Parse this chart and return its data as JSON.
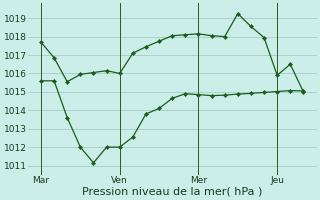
{
  "background_color": "#cceee8",
  "grid_color": "#aaccc8",
  "line_color": "#1a5c1a",
  "xlabel": "Pression niveau de la mer( hPa )",
  "ylim": [
    1010.5,
    1019.8
  ],
  "yticks": [
    1011,
    1012,
    1013,
    1014,
    1015,
    1016,
    1017,
    1018,
    1019
  ],
  "xtick_labels": [
    "Mar",
    "Ven",
    "Mer",
    "Jeu"
  ],
  "xtick_positions": [
    0,
    3,
    6,
    9
  ],
  "vlines": [
    0,
    3,
    6,
    9
  ],
  "line1_x": [
    0,
    0.5,
    1.0,
    1.5,
    2.0,
    2.5,
    3.0,
    3.5,
    4.0,
    4.5,
    5.0,
    5.5,
    6.0,
    6.5,
    7.0,
    7.5,
    8.0,
    8.5,
    9.0,
    9.5,
    10.0
  ],
  "line1_y": [
    1017.7,
    1016.85,
    1015.55,
    1015.95,
    1016.05,
    1016.15,
    1016.0,
    1017.1,
    1017.45,
    1017.75,
    1018.05,
    1018.1,
    1018.15,
    1018.05,
    1018.0,
    1019.25,
    1018.55,
    1017.95,
    1015.9,
    1016.5,
    1015.0
  ],
  "line2_x": [
    0,
    0.5,
    1.0,
    1.5,
    2.0,
    2.5,
    3.0,
    3.5,
    4.0,
    4.5,
    5.0,
    5.5,
    6.0,
    6.5,
    7.0,
    7.5,
    8.0,
    8.5,
    9.0,
    9.5,
    10.0
  ],
  "line2_y": [
    1015.6,
    1015.6,
    1013.6,
    1012.0,
    1011.15,
    1012.0,
    1012.0,
    1012.55,
    1013.8,
    1014.1,
    1014.65,
    1014.9,
    1014.85,
    1014.8,
    1014.82,
    1014.88,
    1014.92,
    1014.97,
    1015.02,
    1015.07,
    1015.05
  ],
  "tick_fontsize": 6.5,
  "xlabel_fontsize": 8,
  "marker_size": 2.2,
  "linewidth": 0.9
}
